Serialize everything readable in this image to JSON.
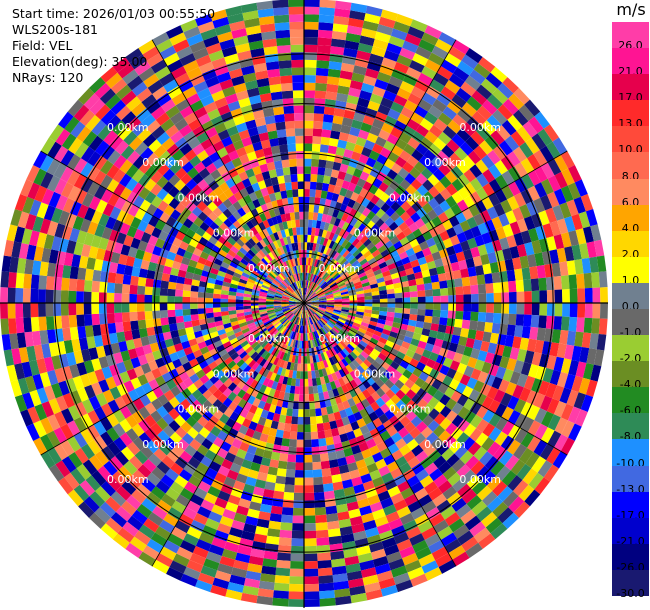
{
  "header": {
    "start_time": "Start time: 2026/01/03 00:55:50",
    "instrument": "WLS200s-181",
    "field": "Field: VEL",
    "elevation": "Elevation(deg): 35.00",
    "nrays": "NRays: 120"
  },
  "colorbar": {
    "unit": "m/s",
    "bands": [
      {
        "label": "26.0",
        "color": "#ff3da8"
      },
      {
        "label": "21.0",
        "color": "#ff1493"
      },
      {
        "label": "17.0",
        "color": "#e6004c"
      },
      {
        "label": "13.0",
        "color": "#ff2a2a"
      },
      {
        "label": "10.0",
        "color": "#ff4a3a"
      },
      {
        "label": "8.0",
        "color": "#ff6a50"
      },
      {
        "label": "6.0",
        "color": "#ff8a60"
      },
      {
        "label": "4.0",
        "color": "#ffa500"
      },
      {
        "label": "2.0",
        "color": "#ffd700"
      },
      {
        "label": "1.0",
        "color": "#ffff00"
      },
      {
        "label": "0.0",
        "color": "#708090"
      },
      {
        "label": "-1.0",
        "color": "#696969"
      },
      {
        "label": "-2.0",
        "color": "#9acd32"
      },
      {
        "label": "-4.0",
        "color": "#6b8e23"
      },
      {
        "label": "-6.0",
        "color": "#228b22"
      },
      {
        "label": "-8.0",
        "color": "#2e8b57"
      },
      {
        "label": "-10.0",
        "color": "#1e90ff"
      },
      {
        "label": "-13.0",
        "color": "#4169e1"
      },
      {
        "label": "-17.0",
        "color": "#0000ff"
      },
      {
        "label": "-21.0",
        "color": "#0000cd"
      },
      {
        "label": "-26.0",
        "color": "#000080"
      },
      {
        "label": "-30.0",
        "color": "#191970"
      }
    ]
  },
  "chart_data": {
    "type": "heatmap",
    "projection": "polar-ppi",
    "nrays": 120,
    "azimuth_range_deg": [
      0,
      360
    ],
    "range_rings_km": [
      1,
      2,
      3,
      4,
      5
    ],
    "ring_label_text": "0.00km",
    "spokes_deg": [
      0,
      30,
      60,
      90,
      120,
      150,
      180,
      210,
      240,
      270,
      300,
      330
    ],
    "grid": true,
    "values_note": "",
    "colorbar_levels": [
      26.0,
      21.0,
      17.0,
      13.0,
      10.0,
      8.0,
      6.0,
      4.0,
      2.0,
      1.0,
      0.0,
      -1.0,
      -2.0,
      -4.0,
      -6.0,
      -8.0,
      -10.0,
      -13.0,
      -17.0,
      -21.0,
      -26.0,
      -30.0
    ]
  }
}
